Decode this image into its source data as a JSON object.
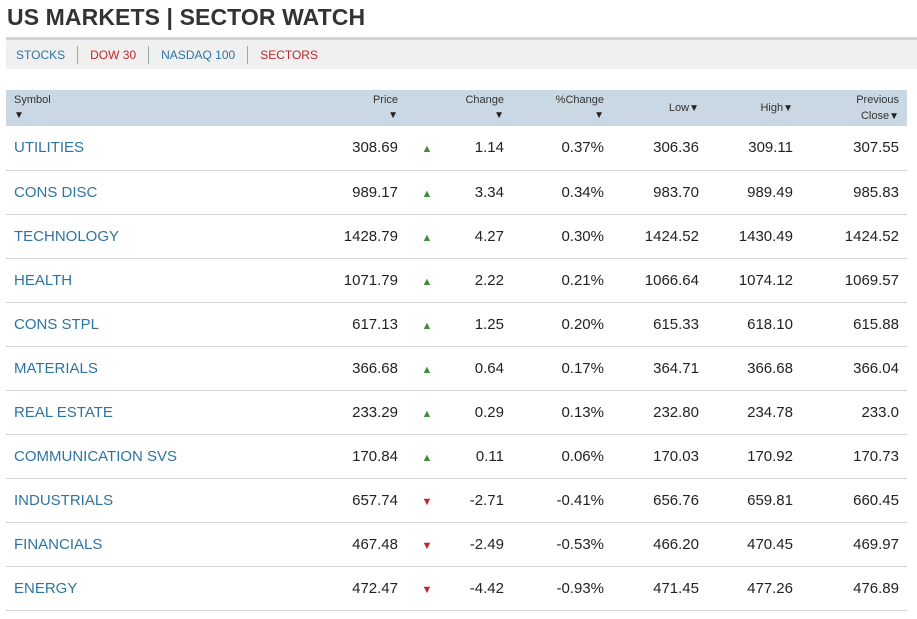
{
  "header": {
    "title": "US MARKETS | SECTOR WATCH"
  },
  "tabs": [
    {
      "label": "STOCKS",
      "color": "#2e74a0"
    },
    {
      "label": "DOW 30",
      "color": "#c2272d"
    },
    {
      "label": "NASDAQ 100",
      "color": "#2e74a0"
    },
    {
      "label": "SECTORS",
      "color": "#c2272d"
    }
  ],
  "table": {
    "columns": {
      "symbol": "Symbol",
      "price": "Price",
      "change": "Change",
      "pct_change": "%Change",
      "low": "Low",
      "high": "High",
      "prev_close_line1": "Previous",
      "prev_close_line2": "Close"
    },
    "sort_icon": "▼",
    "rows": [
      {
        "symbol": "UTILITIES",
        "price": "308.69",
        "dir": "up",
        "change": "1.14",
        "pct": "0.37%",
        "low": "306.36",
        "high": "309.11",
        "prev": "307.55"
      },
      {
        "symbol": "CONS DISC",
        "price": "989.17",
        "dir": "up",
        "change": "3.34",
        "pct": "0.34%",
        "low": "983.70",
        "high": "989.49",
        "prev": "985.83"
      },
      {
        "symbol": "TECHNOLOGY",
        "price": "1428.79",
        "dir": "up",
        "change": "4.27",
        "pct": "0.30%",
        "low": "1424.52",
        "high": "1430.49",
        "prev": "1424.52"
      },
      {
        "symbol": "HEALTH",
        "price": "1071.79",
        "dir": "up",
        "change": "2.22",
        "pct": "0.21%",
        "low": "1066.64",
        "high": "1074.12",
        "prev": "1069.57"
      },
      {
        "symbol": "CONS STPL",
        "price": "617.13",
        "dir": "up",
        "change": "1.25",
        "pct": "0.20%",
        "low": "615.33",
        "high": "618.10",
        "prev": "615.88"
      },
      {
        "symbol": "MATERIALS",
        "price": "366.68",
        "dir": "up",
        "change": "0.64",
        "pct": "0.17%",
        "low": "364.71",
        "high": "366.68",
        "prev": "366.04"
      },
      {
        "symbol": "REAL ESTATE",
        "price": "233.29",
        "dir": "up",
        "change": "0.29",
        "pct": "0.13%",
        "low": "232.80",
        "high": "234.78",
        "prev": "233.0"
      },
      {
        "symbol": "COMMUNICATION SVS",
        "price": "170.84",
        "dir": "up",
        "change": "0.11",
        "pct": "0.06%",
        "low": "170.03",
        "high": "170.92",
        "prev": "170.73"
      },
      {
        "symbol": "INDUSTRIALS",
        "price": "657.74",
        "dir": "down",
        "change": "-2.71",
        "pct": "-0.41%",
        "low": "656.76",
        "high": "659.81",
        "prev": "660.45"
      },
      {
        "symbol": "FINANCIALS",
        "price": "467.48",
        "dir": "down",
        "change": "-2.49",
        "pct": "-0.53%",
        "low": "466.20",
        "high": "470.45",
        "prev": "469.97"
      },
      {
        "symbol": "ENERGY",
        "price": "472.47",
        "dir": "down",
        "change": "-4.42",
        "pct": "-0.93%",
        "low": "471.45",
        "high": "477.26",
        "prev": "476.89"
      }
    ]
  },
  "icons": {
    "up": "triangle-up-icon",
    "down": "triangle-down-icon"
  },
  "colors": {
    "link_blue": "#2e74a0",
    "tab_red": "#c2272d",
    "up_green": "#3f8f3a",
    "down_red": "#c2272d",
    "header_bg": "#c9d8e2"
  }
}
